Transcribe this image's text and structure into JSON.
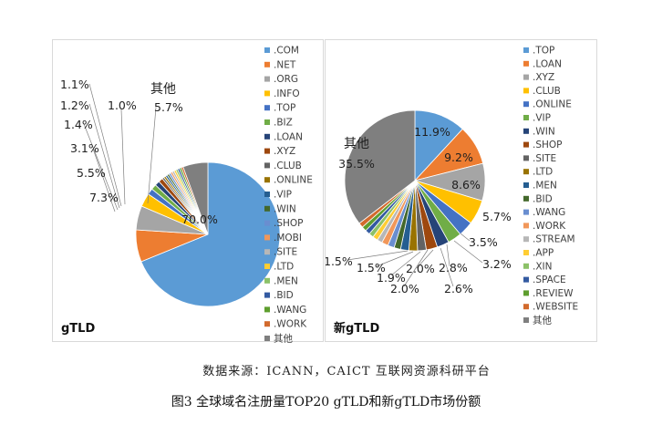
{
  "source": "数据来源：ICANN，CAICT 互联网资源科研平台",
  "caption": "图3 全球域名注册量TOP20 gTLD和新gTLD市场份额",
  "chart_data": [
    {
      "type": "pie",
      "title": "gTLD",
      "legend_position": "right",
      "categories": [
        ".COM",
        ".NET",
        ".ORG",
        ".INFO",
        ".TOP",
        ".BIZ",
        ".LOAN",
        ".XYZ",
        ".CLUB",
        ".ONLINE",
        ".VIP",
        ".WIN",
        ".SHOP",
        ".MOBI",
        ".SITE",
        ".LTD",
        ".MEN",
        ".BID",
        ".WANG",
        ".WORK",
        "其他"
      ],
      "values": [
        70.0,
        7.3,
        5.5,
        3.1,
        1.4,
        1.2,
        1.1,
        1.0,
        null,
        null,
        null,
        null,
        null,
        null,
        null,
        null,
        null,
        null,
        null,
        null,
        5.7
      ],
      "colors": [
        "#5b9bd5",
        "#ed7d31",
        "#a5a5a5",
        "#ffc000",
        "#4472c4",
        "#70ad47",
        "#264478",
        "#9e480e",
        "#636363",
        "#997300",
        "#255e91",
        "#43682b",
        "#698ed0",
        "#f1975a",
        "#b7b7b7",
        "#ffcd33",
        "#8cc168",
        "#335aa1",
        "#5e9e2e",
        "#d26a2d",
        "#7f7f7f"
      ],
      "data_labels": [
        "70.0%",
        "7.3%",
        "5.5%",
        "3.1%",
        "1.4%",
        "1.2%",
        "1.1%",
        "1.0%",
        "",
        "",
        "",
        "",
        "",
        "",
        "",
        "",
        "",
        "",
        "",
        "",
        "5.7%"
      ],
      "other_label": "其他"
    },
    {
      "type": "pie",
      "title": "新gTLD",
      "legend_position": "right",
      "categories": [
        ".TOP",
        ".LOAN",
        ".XYZ",
        ".CLUB",
        ".ONLINE",
        ".VIP",
        ".WIN",
        ".SHOP",
        ".SITE",
        ".LTD",
        ".MEN",
        ".BID",
        ".WANG",
        ".WORK",
        ".STREAM",
        ".APP",
        ".XIN",
        ".SPACE",
        ".REVIEW",
        ".WEBSITE",
        "其他"
      ],
      "values": [
        11.9,
        9.2,
        8.6,
        5.7,
        3.5,
        3.2,
        2.8,
        2.6,
        2.0,
        2.0,
        1.9,
        1.5,
        1.5,
        1.5,
        1.2,
        1.2,
        1.1,
        1.1,
        1.1,
        1.1,
        35.5
      ],
      "colors": [
        "#5b9bd5",
        "#ed7d31",
        "#a5a5a5",
        "#ffc000",
        "#4472c4",
        "#70ad47",
        "#264478",
        "#9e480e",
        "#636363",
        "#997300",
        "#255e91",
        "#43682b",
        "#698ed0",
        "#f1975a",
        "#b7b7b7",
        "#ffcd33",
        "#8cc168",
        "#335aa1",
        "#5e9e2e",
        "#d26a2d",
        "#7f7f7f"
      ],
      "data_labels": [
        "11.9%",
        "9.2%",
        "8.6%",
        "5.7%",
        "3.5%",
        "3.2%",
        "2.8%",
        "2.6%",
        "2.0%",
        "2.0%",
        "1.9%",
        "1.5%",
        "1.5%",
        "",
        "",
        "",
        "",
        "",
        "",
        "",
        "35.5%"
      ],
      "other_label": "其他"
    }
  ]
}
